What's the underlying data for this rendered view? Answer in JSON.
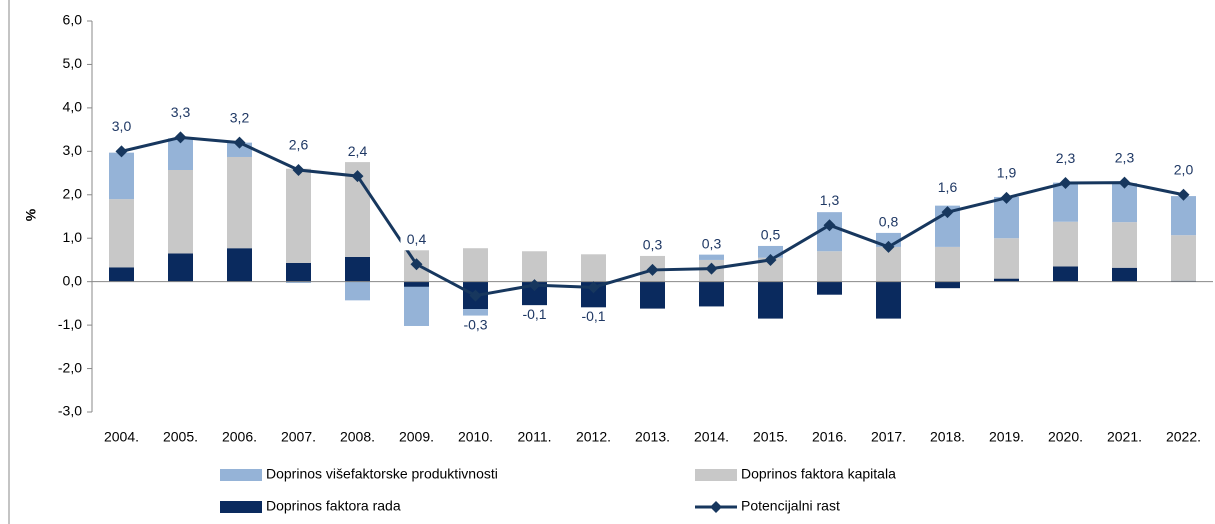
{
  "chart_data": {
    "type": "bar",
    "categories": [
      "2004.",
      "2005.",
      "2006.",
      "2007.",
      "2008.",
      "2009.",
      "2010.",
      "2011.",
      "2012.",
      "2013.",
      "2014.",
      "2015.",
      "2016.",
      "2017.",
      "2018.",
      "2019.",
      "2020.",
      "2021.",
      "2022."
    ],
    "ylabel": "%",
    "ylim": [
      -3,
      6
    ],
    "yticks": [
      {
        "value": -3,
        "label": "-3,0"
      },
      {
        "value": -2,
        "label": "-2,0"
      },
      {
        "value": -1,
        "label": "-1,0"
      },
      {
        "value": 0,
        "label": "0,0"
      },
      {
        "value": 1,
        "label": "1,0"
      },
      {
        "value": 2,
        "label": "2,0"
      },
      {
        "value": 3,
        "label": "3,0"
      },
      {
        "value": 4,
        "label": "4,0"
      },
      {
        "value": 5,
        "label": "5,0"
      },
      {
        "value": 6,
        "label": "6,0"
      }
    ],
    "stacked": true,
    "series": [
      {
        "name": "Doprinos faktora rada",
        "color": "#0a2a5e",
        "values": [
          0.33,
          0.65,
          0.77,
          0.43,
          0.57,
          -0.12,
          -0.63,
          -0.57,
          -0.72,
          -0.62,
          -0.57,
          -0.85,
          -0.3,
          -0.85,
          -0.15,
          0.07,
          0.35,
          0.32,
          0.02
        ]
      },
      {
        "name": "Doprinos faktora kapitala",
        "color": "#c8c8c8",
        "values": [
          1.57,
          1.92,
          2.1,
          2.17,
          2.33,
          1.0,
          0.77,
          0.7,
          0.63,
          0.65,
          0.5,
          0.55,
          0.7,
          0.8,
          0.8,
          0.93,
          1.03,
          1.05,
          1.05
        ]
      },
      {
        "name": "Doprinos višefaktorske produktivnosti",
        "color": "#95b3d7",
        "values": [
          1.07,
          0.73,
          0.33,
          -0.03,
          -0.43,
          -0.9,
          -0.47,
          -0.23,
          -0.05,
          0.15,
          0.2,
          0.5,
          0.9,
          0.35,
          0.95,
          0.95,
          0.9,
          0.9,
          0.9
        ]
      },
      {
        "name": "Potencijalni rast",
        "color": "#17375e",
        "type": "line",
        "values": [
          3.0,
          3.32,
          3.2,
          2.57,
          2.43,
          0.4,
          -0.32,
          -0.08,
          -0.13,
          0.27,
          0.3,
          0.5,
          1.3,
          0.8,
          1.6,
          1.93,
          2.27,
          2.28,
          2.0
        ],
        "value_labels": [
          "3,0",
          "3,3",
          "3,2",
          "2,6",
          "2,4",
          "0,4",
          "-0,3",
          "-0,1",
          "-0,1",
          "0,3",
          "0,3",
          "0,5",
          "1,3",
          "0,8",
          "1,6",
          "1,9",
          "2,3",
          "2,3",
          "2,0"
        ]
      }
    ]
  }
}
